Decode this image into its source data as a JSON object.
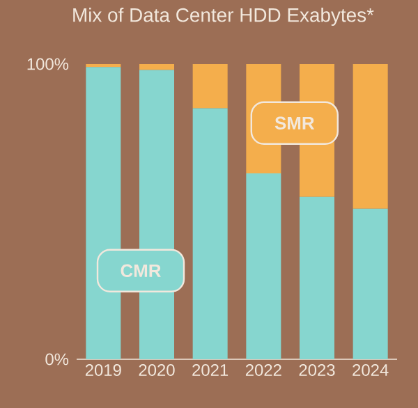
{
  "chart_data": {
    "type": "bar",
    "title": "Mix of Data Center HDD Exabytes*",
    "stacked": true,
    "categories": [
      "2019",
      "2020",
      "2021",
      "2022",
      "2023",
      "2024"
    ],
    "series": [
      {
        "name": "CMR",
        "color": "#86d6cf",
        "values": [
          99,
          98,
          85,
          63,
          55,
          51
        ]
      },
      {
        "name": "SMR",
        "color": "#f4ae4c",
        "values": [
          1,
          2,
          15,
          37,
          45,
          49
        ]
      }
    ],
    "ylim": [
      0,
      100
    ],
    "yticks": [
      {
        "value": 0,
        "label": "0%"
      },
      {
        "value": 100,
        "label": "100%"
      }
    ],
    "legend": false
  }
}
